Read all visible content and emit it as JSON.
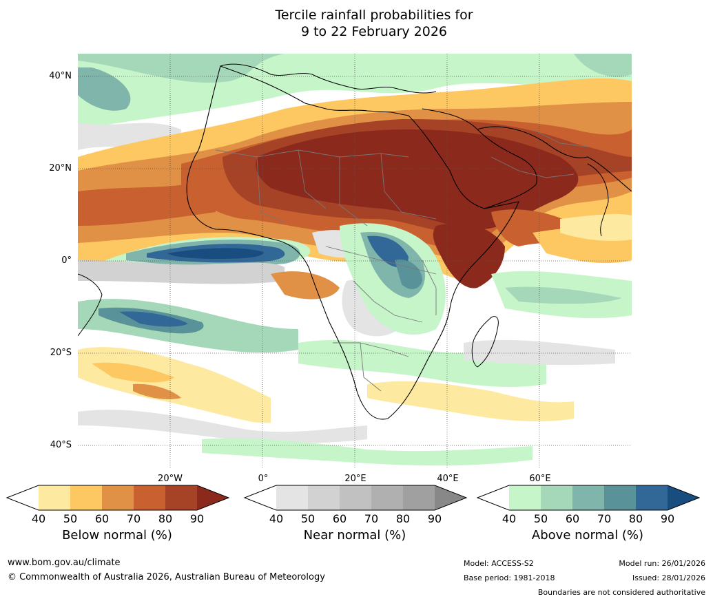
{
  "title_line1": "Tercile rainfall probabilities for",
  "title_line2": "9 to 22 February 2026",
  "lat_labels": [
    "40°N",
    "20°N",
    "0°",
    "20°S",
    "40°S"
  ],
  "lon_labels": [
    "20°W",
    "0°",
    "20°E",
    "40°E",
    "60°E"
  ],
  "colorbars": [
    {
      "title": "Below normal (%)",
      "ticks": [
        "40",
        "50",
        "60",
        "70",
        "80",
        "90"
      ],
      "colors": [
        "#ffffff",
        "#fde9a0",
        "#fdc761",
        "#e09145",
        "#c8602f",
        "#a64326",
        "#8b2a1c"
      ]
    },
    {
      "title": "Near normal (%)",
      "ticks": [
        "40",
        "50",
        "60",
        "70",
        "80",
        "90"
      ],
      "colors": [
        "#ffffff",
        "#e4e4e4",
        "#d2d2d2",
        "#c1c1c1",
        "#b0b0b0",
        "#a0a0a0",
        "#888888"
      ]
    },
    {
      "title": "Above normal (%)",
      "ticks": [
        "40",
        "50",
        "60",
        "70",
        "80",
        "90"
      ],
      "colors": [
        "#ffffff",
        "#c7f5ca",
        "#a5d8b9",
        "#80b5ab",
        "#5a9299",
        "#326897",
        "#194d80"
      ]
    }
  ],
  "footer": {
    "website": "www.bom.gov.au/climate",
    "copyright": "© Commonwealth of Australia 2026, Australian Bureau of Meteorology",
    "model": "Model: ACCESS-S2",
    "base_period": "Base period: 1981-2018",
    "model_run": "Model run: 26/01/2026",
    "issued": "Issued: 28/01/2026",
    "disclaimer": "Boundaries are not considered authoritative"
  }
}
